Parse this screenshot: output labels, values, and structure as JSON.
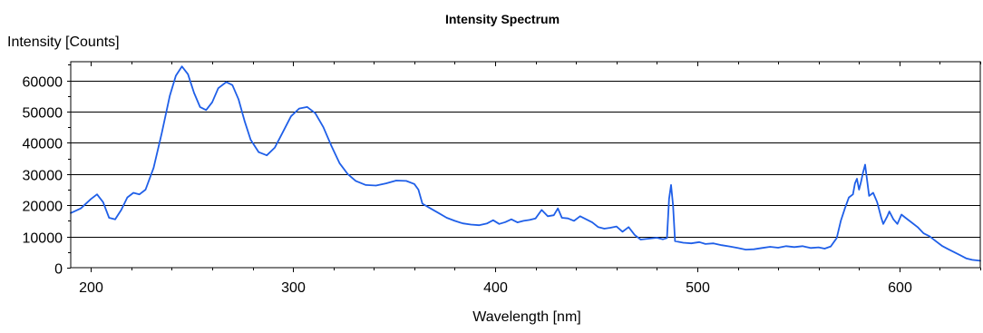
{
  "chart_data": {
    "type": "line",
    "title": "Intensity Spectrum",
    "xlabel": "Wavelength [nm]",
    "ylabel": "Intensity [Counts]",
    "xlim": [
      190,
      640
    ],
    "ylim": [
      0,
      66000
    ],
    "x_ticks": [
      200,
      300,
      400,
      500,
      600
    ],
    "y_ticks": [
      0,
      10000,
      20000,
      30000,
      40000,
      50000,
      60000
    ],
    "grid": "horizontal",
    "legend": "none",
    "series": [
      {
        "color": "#1f5fe8",
        "points": [
          [
            190,
            17500
          ],
          [
            195,
            19000
          ],
          [
            200,
            22000
          ],
          [
            203,
            23500
          ],
          [
            206,
            21000
          ],
          [
            209,
            16000
          ],
          [
            212,
            15500
          ],
          [
            215,
            18500
          ],
          [
            218,
            22500
          ],
          [
            221,
            24000
          ],
          [
            224,
            23500
          ],
          [
            227,
            25000
          ],
          [
            231,
            32000
          ],
          [
            235,
            43000
          ],
          [
            239,
            55000
          ],
          [
            242,
            61500
          ],
          [
            245,
            64500
          ],
          [
            248,
            62000
          ],
          [
            251,
            56000
          ],
          [
            254,
            51500
          ],
          [
            257,
            50500
          ],
          [
            260,
            53000
          ],
          [
            263,
            57500
          ],
          [
            267,
            59500
          ],
          [
            270,
            58500
          ],
          [
            273,
            54000
          ],
          [
            276,
            47000
          ],
          [
            279,
            41000
          ],
          [
            283,
            37000
          ],
          [
            287,
            36000
          ],
          [
            291,
            38500
          ],
          [
            295,
            43500
          ],
          [
            299,
            48500
          ],
          [
            303,
            51000
          ],
          [
            307,
            51500
          ],
          [
            311,
            49500
          ],
          [
            315,
            45000
          ],
          [
            319,
            39000
          ],
          [
            323,
            33500
          ],
          [
            327,
            30000
          ],
          [
            331,
            27800
          ],
          [
            336,
            26500
          ],
          [
            341,
            26300
          ],
          [
            346,
            27000
          ],
          [
            351,
            27900
          ],
          [
            356,
            27800
          ],
          [
            360,
            26800
          ],
          [
            362,
            25000
          ],
          [
            364,
            20500
          ],
          [
            368,
            19000
          ],
          [
            372,
            17500
          ],
          [
            376,
            16000
          ],
          [
            380,
            15000
          ],
          [
            384,
            14200
          ],
          [
            388,
            13800
          ],
          [
            392,
            13600
          ],
          [
            396,
            14200
          ],
          [
            399,
            15200
          ],
          [
            402,
            14000
          ],
          [
            405,
            14600
          ],
          [
            408,
            15500
          ],
          [
            411,
            14500
          ],
          [
            414,
            15000
          ],
          [
            417,
            15300
          ],
          [
            420,
            15800
          ],
          [
            423,
            18500
          ],
          [
            426,
            16500
          ],
          [
            429,
            16800
          ],
          [
            431,
            19000
          ],
          [
            433,
            16000
          ],
          [
            436,
            15800
          ],
          [
            439,
            15000
          ],
          [
            442,
            16500
          ],
          [
            445,
            15500
          ],
          [
            448,
            14500
          ],
          [
            451,
            13000
          ],
          [
            454,
            12500
          ],
          [
            457,
            12800
          ],
          [
            460,
            13200
          ],
          [
            463,
            11500
          ],
          [
            466,
            13000
          ],
          [
            469,
            10500
          ],
          [
            472,
            9000
          ],
          [
            476,
            9300
          ],
          [
            480,
            9600
          ],
          [
            483,
            9100
          ],
          [
            485,
            9500
          ],
          [
            486,
            22000
          ],
          [
            487,
            26500
          ],
          [
            488,
            20000
          ],
          [
            489,
            8500
          ],
          [
            493,
            8000
          ],
          [
            497,
            7800
          ],
          [
            501,
            8200
          ],
          [
            504,
            7600
          ],
          [
            508,
            7800
          ],
          [
            512,
            7200
          ],
          [
            516,
            6800
          ],
          [
            520,
            6300
          ],
          [
            524,
            5800
          ],
          [
            528,
            5900
          ],
          [
            532,
            6300
          ],
          [
            536,
            6700
          ],
          [
            540,
            6400
          ],
          [
            544,
            6900
          ],
          [
            548,
            6600
          ],
          [
            552,
            6900
          ],
          [
            556,
            6300
          ],
          [
            560,
            6500
          ],
          [
            563,
            6100
          ],
          [
            566,
            6800
          ],
          [
            569,
            9500
          ],
          [
            571,
            15000
          ],
          [
            573,
            19000
          ],
          [
            575,
            22500
          ],
          [
            577,
            23500
          ],
          [
            578,
            27000
          ],
          [
            579,
            28500
          ],
          [
            580,
            25000
          ],
          [
            581,
            27500
          ],
          [
            582,
            30500
          ],
          [
            583,
            33000
          ],
          [
            584,
            28000
          ],
          [
            585,
            23000
          ],
          [
            587,
            24000
          ],
          [
            589,
            21000
          ],
          [
            591,
            16000
          ],
          [
            592,
            14000
          ],
          [
            594,
            16500
          ],
          [
            595,
            18000
          ],
          [
            597,
            15500
          ],
          [
            599,
            14000
          ],
          [
            601,
            17000
          ],
          [
            603,
            16000
          ],
          [
            606,
            14500
          ],
          [
            609,
            13000
          ],
          [
            612,
            11000
          ],
          [
            615,
            10000
          ],
          [
            618,
            8500
          ],
          [
            621,
            7000
          ],
          [
            624,
            6000
          ],
          [
            627,
            5000
          ],
          [
            630,
            4000
          ],
          [
            633,
            3000
          ],
          [
            636,
            2500
          ],
          [
            640,
            2200
          ]
        ]
      }
    ]
  }
}
